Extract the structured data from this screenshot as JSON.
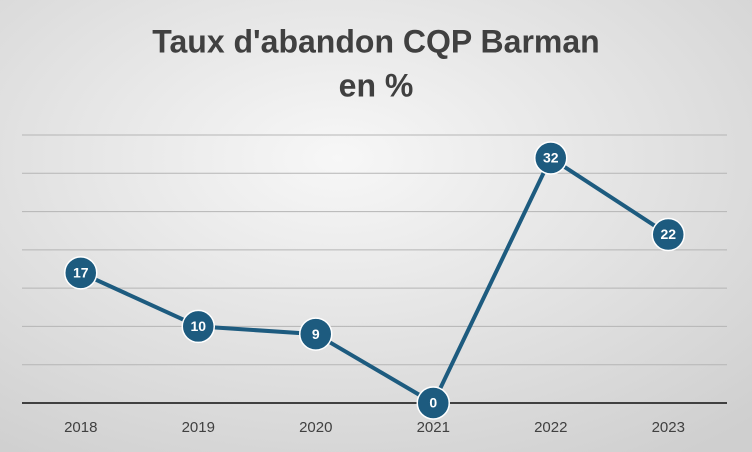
{
  "chart_data": {
    "type": "line",
    "title": "Taux d'abandon CQP Barman",
    "subtitle": "en %",
    "categories": [
      "2018",
      "2019",
      "2020",
      "2021",
      "2022",
      "2023"
    ],
    "values": [
      17,
      10,
      9,
      0,
      32,
      22
    ],
    "color": "#1d5b7f",
    "ylim": [
      0,
      35
    ],
    "yticks": [
      0,
      5,
      10,
      15,
      20,
      25,
      30,
      35
    ],
    "grid": true
  }
}
